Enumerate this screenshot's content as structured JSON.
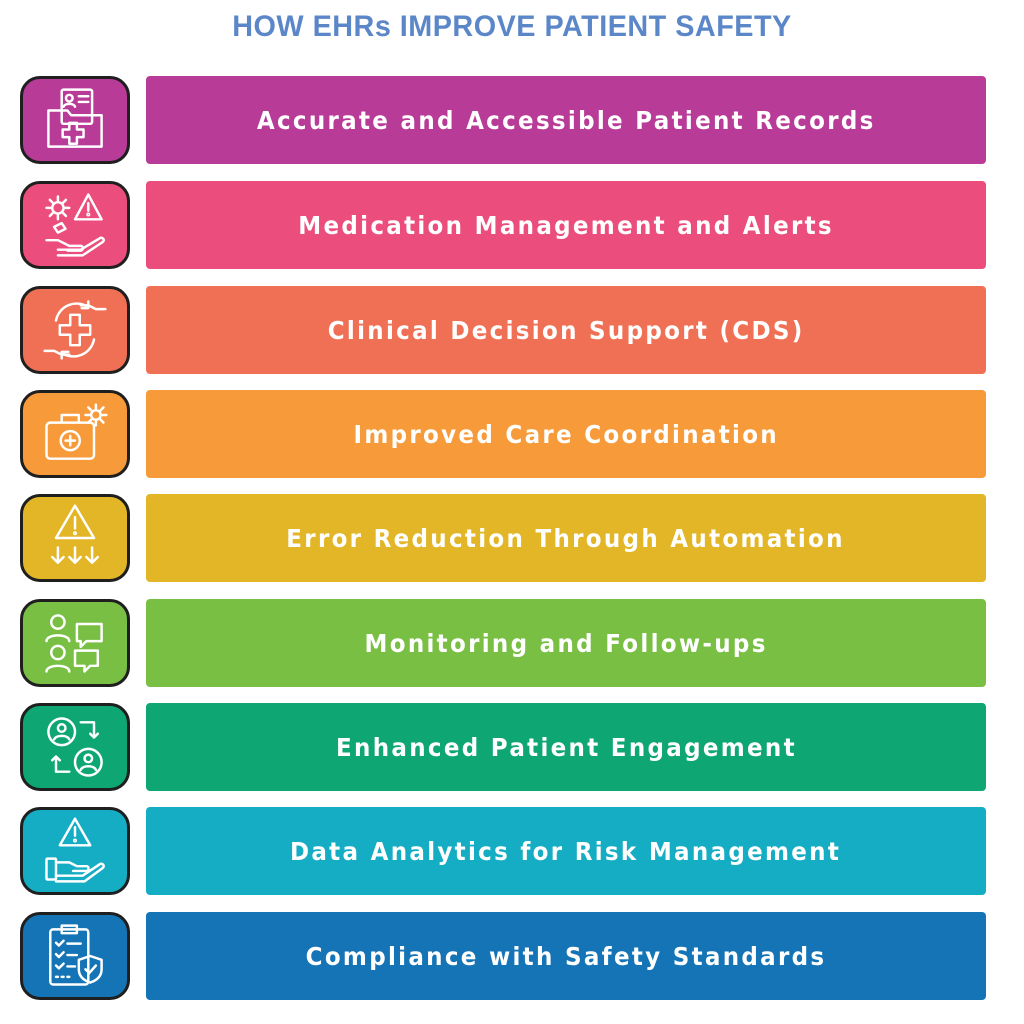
{
  "title": "HOW EHRs IMPROVE PATIENT SAFETY",
  "title_color": "#5b87c9",
  "items": [
    {
      "label": "Accurate and Accessible Patient Records",
      "color": "#b83b97",
      "icon": "patient-records-folder-icon"
    },
    {
      "label": "Medication Management and Alerts",
      "color": "#eb4d7c",
      "icon": "medication-alert-hand-icon"
    },
    {
      "label": "Clinical Decision Support (CDS)",
      "color": "#f07055",
      "icon": "medical-cross-cycle-hands-icon"
    },
    {
      "label": "Improved Care Coordination",
      "color": "#f69a3a",
      "icon": "medical-bag-gear-icon"
    },
    {
      "label": "Error Reduction Through Automation",
      "color": "#e2b627",
      "icon": "warning-down-arrows-icon"
    },
    {
      "label": "Monitoring and Follow-ups",
      "color": "#78bf44",
      "icon": "people-chat-followup-icon"
    },
    {
      "label": "Enhanced Patient Engagement",
      "color": "#0ea672",
      "icon": "patient-exchange-icon"
    },
    {
      "label": "Data Analytics for Risk Management",
      "color": "#15adc3",
      "icon": "risk-warning-hand-icon"
    },
    {
      "label": "Compliance with Safety Standards",
      "color": "#1474b5",
      "icon": "checklist-shield-icon"
    }
  ]
}
